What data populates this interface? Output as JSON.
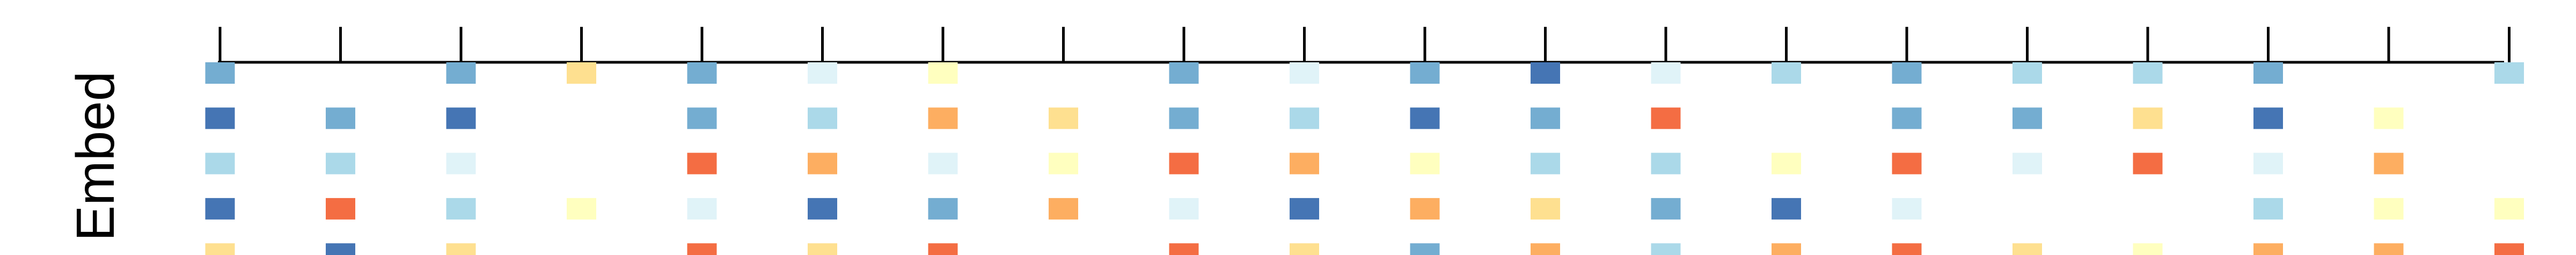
{
  "chart_data": {
    "type": "heatmap",
    "ylabel": "Embed",
    "xlabel": "",
    "title": "",
    "num_columns": 20,
    "num_rows": 5,
    "x_ticks": [
      1,
      2,
      3,
      4,
      5,
      6,
      7,
      8,
      9,
      10,
      11,
      12,
      13,
      14,
      15,
      16,
      17,
      18,
      19,
      20
    ],
    "tick_labels_shown": false,
    "palette": {
      "1": "#4575b4",
      "2": "#74add1",
      "3": "#abd9e9",
      "4": "#e0f3f8",
      "5": "#ffffbf",
      "6": "#fee090",
      "7": "#fdae61",
      "8": "#f46d43"
    },
    "rows": [
      [
        2,
        0,
        2,
        6,
        2,
        4,
        5,
        0,
        2,
        4,
        2,
        1,
        4,
        3,
        2,
        3,
        3,
        2,
        0,
        3
      ],
      [
        1,
        2,
        1,
        0,
        2,
        3,
        7,
        6,
        2,
        3,
        1,
        2,
        8,
        0,
        2,
        2,
        6,
        1,
        5,
        0
      ],
      [
        3,
        3,
        4,
        0,
        8,
        7,
        4,
        5,
        8,
        7,
        5,
        3,
        3,
        5,
        8,
        4,
        8,
        4,
        7,
        0
      ],
      [
        1,
        8,
        3,
        5,
        4,
        1,
        2,
        7,
        4,
        1,
        7,
        6,
        2,
        1,
        4,
        0,
        0,
        3,
        5,
        5
      ],
      [
        6,
        1,
        6,
        0,
        8,
        6,
        8,
        0,
        8,
        6,
        2,
        7,
        3,
        7,
        8,
        6,
        5,
        7,
        7,
        8
      ]
    ]
  }
}
